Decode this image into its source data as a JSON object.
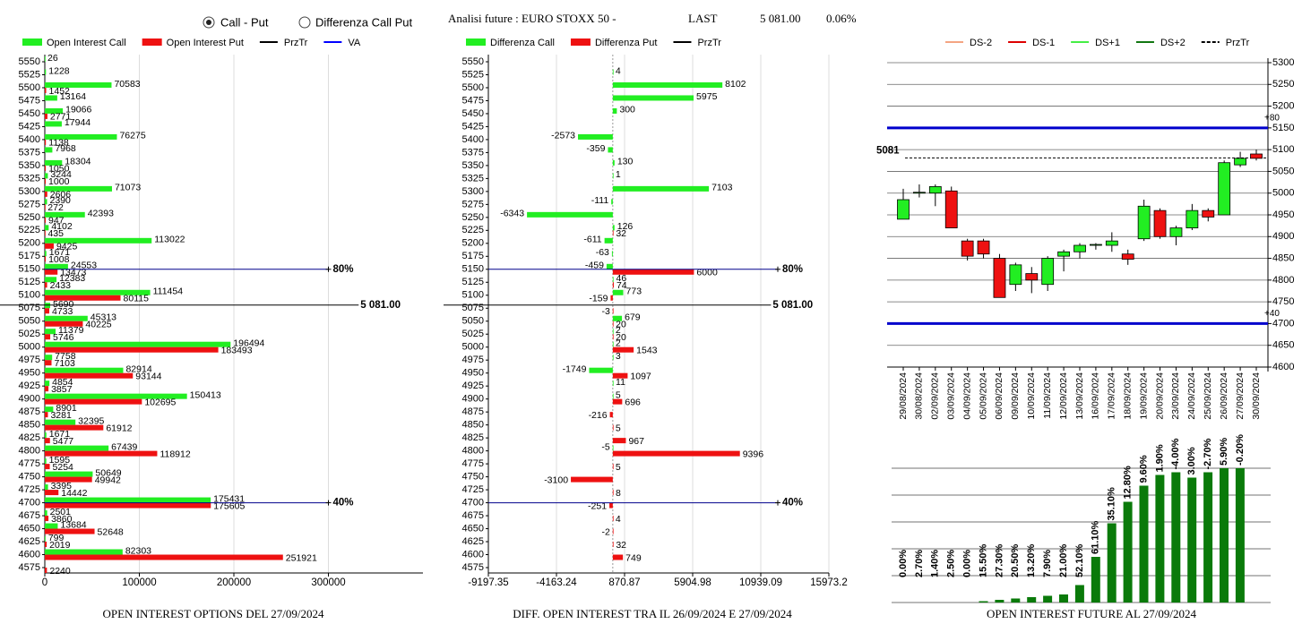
{
  "header": {
    "radio": [
      {
        "label": "Call - Put",
        "checked": true
      },
      {
        "label": "Differenza Call Put",
        "checked": false
      }
    ],
    "instrument": "Analisi future : EURO STOXX 50 -",
    "last_label": "LAST",
    "last": "5 081.00",
    "change": "0.06%"
  },
  "chart_data": [
    {
      "type": "bar",
      "orientation": "horizontal",
      "title": "OPEN INTEREST OPTIONS DEL 27/09/2024",
      "categories": [
        5550,
        5525,
        5500,
        5475,
        5450,
        5425,
        5400,
        5375,
        5350,
        5325,
        5300,
        5275,
        5250,
        5225,
        5200,
        5175,
        5150,
        5125,
        5100,
        5075,
        5050,
        5025,
        5000,
        4975,
        4950,
        4925,
        4900,
        4875,
        4850,
        4825,
        4800,
        4775,
        4750,
        4725,
        4700,
        4675,
        4650,
        4625,
        4600,
        4575
      ],
      "series": [
        {
          "name": "Open Interest Call",
          "color": "#22ee22",
          "values": [
            26,
            1228,
            70583,
            13164,
            19066,
            17944,
            76275,
            7968,
            18304,
            3244,
            71073,
            2390,
            42393,
            4102,
            113022,
            1671,
            24553,
            12383,
            111454,
            5690,
            45313,
            11379,
            196494,
            7758,
            82914,
            4854,
            150413,
            8901,
            32395,
            1671,
            67439,
            1595,
            50649,
            3395,
            175431,
            2501,
            13684,
            799,
            82303,
            null
          ]
        },
        {
          "name": "Open Interest Put",
          "color": "#ee1111",
          "values": [
            null,
            null,
            1452,
            null,
            2771,
            null,
            1138,
            null,
            1050,
            1000,
            2606,
            272,
            947,
            435,
            9425,
            1008,
            13473,
            2433,
            80115,
            4733,
            40225,
            5746,
            183493,
            7103,
            93144,
            3857,
            102695,
            3281,
            61912,
            5477,
            118912,
            5254,
            49942,
            14442,
            175605,
            3860,
            52648,
            2019,
            251921,
            2240
          ]
        }
      ],
      "reference_series": [
        {
          "name": "PrzTr",
          "color": "#000000"
        },
        {
          "name": "VA",
          "color": "#0000ff"
        }
      ],
      "levels": [
        {
          "at": 5150,
          "text": "80%",
          "color": "#00008b"
        },
        {
          "at": 5081,
          "text": "5 081.00",
          "color": "#000000"
        },
        {
          "at": 4700,
          "text": "40%",
          "color": "#00008b"
        }
      ],
      "xlim": [
        0,
        400000
      ],
      "xticks": [
        0,
        100000,
        200000,
        300000
      ],
      "grid": true
    },
    {
      "type": "bar",
      "orientation": "horizontal",
      "title": "DIFF. OPEN INTEREST TRA IL 26/09/2024 E 27/09/2024",
      "categories": [
        5550,
        5525,
        5500,
        5475,
        5450,
        5425,
        5400,
        5375,
        5350,
        5325,
        5300,
        5275,
        5250,
        5225,
        5200,
        5175,
        5150,
        5125,
        5100,
        5075,
        5050,
        5025,
        5000,
        4975,
        4950,
        4925,
        4900,
        4875,
        4850,
        4825,
        4800,
        4775,
        4750,
        4725,
        4700,
        4675,
        4650,
        4625,
        4600,
        4575
      ],
      "series": [
        {
          "name": "Differenza Call",
          "color": "#22ee22",
          "values": [
            null,
            4,
            8102,
            5975,
            300,
            null,
            -2573,
            -359,
            130,
            1,
            7103,
            -111,
            -6343,
            126,
            -611,
            -63,
            -459,
            46,
            773,
            null,
            679,
            2,
            2,
            3,
            -1749,
            11,
            5,
            null,
            null,
            null,
            -5,
            null,
            null,
            null,
            null,
            null,
            null,
            null,
            null,
            null
          ]
        },
        {
          "name": "Differenza Put",
          "color": "#ee1111",
          "values": [
            null,
            null,
            null,
            null,
            null,
            null,
            null,
            null,
            null,
            null,
            null,
            null,
            null,
            32,
            null,
            null,
            6000,
            74,
            -159,
            -3,
            20,
            20,
            1543,
            null,
            1097,
            null,
            696,
            -216,
            5,
            967,
            9396,
            5,
            -3100,
            8,
            -251,
            4,
            -2,
            32,
            749,
            null
          ]
        }
      ],
      "reference_series": [
        {
          "name": "PrzTr",
          "color": "#000000"
        }
      ],
      "levels": [
        {
          "at": 5150,
          "text": "80%",
          "color": "#00008b"
        },
        {
          "at": 5081,
          "text": "5 081.00",
          "color": "#000000"
        },
        {
          "at": 4700,
          "text": "40%",
          "color": "#00008b"
        }
      ],
      "xlim": [
        -9197.35,
        15973.2
      ],
      "xticks": [
        -9197.35,
        -4163.24,
        870.87,
        5904.98,
        10939.09,
        15973.2
      ],
      "grid": true
    },
    {
      "type": "candlestick",
      "categories": [
        "29/08/2024",
        "30/08/2024",
        "02/09/2024",
        "03/09/2024",
        "04/09/2024",
        "05/09/2024",
        "06/09/2024",
        "09/09/2024",
        "10/09/2024",
        "11/09/2024",
        "12/09/2024",
        "13/09/2024",
        "16/09/2024",
        "17/09/2024",
        "18/09/2024",
        "19/09/2024",
        "20/09/2024",
        "23/09/2024",
        "24/09/2024",
        "25/09/2024",
        "26/09/2024",
        "27/09/2024",
        "30/09/2024"
      ],
      "open": [
        4940,
        5000,
        5000,
        5005,
        4890,
        4890,
        4850,
        4790,
        4815,
        4790,
        4855,
        4865,
        4880,
        4880,
        4860,
        4895,
        4960,
        4900,
        4920,
        4960,
        4950,
        5065,
        5090
      ],
      "high": [
        5010,
        5020,
        5020,
        5015,
        4895,
        4895,
        4860,
        4840,
        4830,
        4855,
        4870,
        4885,
        4885,
        4910,
        4870,
        4985,
        4965,
        4925,
        4975,
        4965,
        5075,
        5095,
        5100
      ],
      "low": [
        4940,
        4990,
        4970,
        4920,
        4845,
        4850,
        4760,
        4775,
        4770,
        4775,
        4820,
        4850,
        4870,
        4865,
        4835,
        4890,
        4895,
        4880,
        4915,
        4935,
        4950,
        5060,
        5075
      ],
      "close": [
        4985,
        5002,
        5015,
        4920,
        4855,
        4860,
        4760,
        4835,
        4800,
        4850,
        4865,
        4880,
        4882,
        4890,
        4848,
        4970,
        4900,
        4920,
        4960,
        4945,
        5070,
        5080,
        5080
      ],
      "up_color": "#22ee22",
      "down_color": "#ee1111",
      "legend": [
        {
          "name": "DS-2",
          "color": "#f4a582"
        },
        {
          "name": "DS-1",
          "color": "#dd0000"
        },
        {
          "name": "DS+1",
          "color": "#44ee44"
        },
        {
          "name": "DS+2",
          "color": "#117711"
        },
        {
          "name": "PrzTr",
          "color": "#000000",
          "dashed": true
        }
      ],
      "levels": [
        {
          "at": 5150,
          "text": "+80",
          "color": "#0000cc"
        },
        {
          "at": 5081,
          "text": "5081",
          "color": "#000000",
          "dashed": true
        },
        {
          "at": 4700,
          "text": "+40",
          "color": "#0000cc"
        }
      ],
      "ylim": [
        4600,
        5300
      ],
      "yticks": [
        4600,
        4650,
        4700,
        4750,
        4800,
        4850,
        4900,
        4950,
        5000,
        5050,
        5100,
        5150,
        5200,
        5250,
        5300
      ],
      "grid": true
    },
    {
      "type": "bar",
      "orientation": "vertical",
      "title": "OPEN INTEREST FUTURE AL 27/09/2024",
      "values": [
        0,
        0,
        0,
        0,
        0,
        1,
        2,
        3,
        4,
        5,
        6,
        13,
        34,
        59,
        75,
        87,
        95,
        97,
        93,
        97,
        100,
        100
      ],
      "bar_labels": [
        "0.00%",
        "2.70%",
        "1.40%",
        "2.50%",
        "0.00%",
        "15.50%",
        "27.30%",
        "20.50%",
        "13.20%",
        "7.90%",
        "21.00%",
        "52.10%",
        "61.10%",
        "35.10%",
        "12.80%",
        "9.60%",
        "1.90%",
        "-4.00%",
        "3.00%",
        "-2.70%",
        "5.90%",
        "-0.20%"
      ],
      "color": "#0a7a0a",
      "ylim": [
        0,
        100
      ],
      "grid": true
    }
  ]
}
